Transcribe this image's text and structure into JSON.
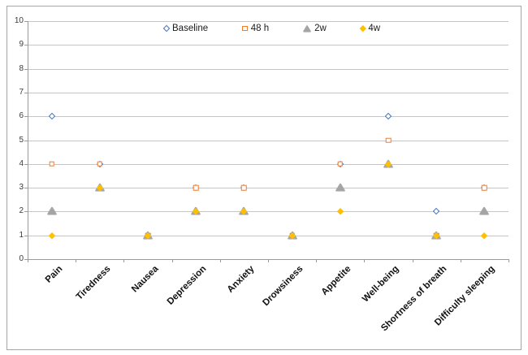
{
  "chart_data": {
    "type": "scatter",
    "title": "",
    "xlabel": "",
    "ylabel": "",
    "categories": [
      "Pain",
      "Tiredness",
      "Nausea",
      "Depression",
      "Anxiety",
      "Drowsiness",
      "Appetite",
      "Well-being",
      "Shortness of breath",
      "Difficulty sleeping"
    ],
    "series": [
      {
        "name": "Baseline",
        "marker": "diamond-outline",
        "color": "#4472C4",
        "values": [
          6,
          4,
          1,
          3,
          3,
          1,
          4,
          6,
          2,
          3
        ]
      },
      {
        "name": "48 h",
        "marker": "square-outline",
        "color": "#ED7D31",
        "values": [
          4,
          4,
          1,
          3,
          3,
          1,
          4,
          5,
          1,
          3
        ]
      },
      {
        "name": "2w",
        "marker": "triangle-filled",
        "color": "#A5A5A5",
        "values": [
          2,
          3,
          1,
          2,
          2,
          1,
          3,
          4,
          1,
          2
        ]
      },
      {
        "name": "4w",
        "marker": "diamond-filled",
        "color": "#FFC000",
        "values": [
          1,
          3,
          1,
          2,
          2,
          1,
          2,
          4,
          1,
          1
        ]
      }
    ],
    "ylim": [
      0,
      10
    ],
    "yticks": [
      0,
      1,
      2,
      3,
      4,
      5,
      6,
      7,
      8,
      9,
      10
    ],
    "grid": true,
    "legend_position": "top-center",
    "colors": {
      "gridline": "#c6c6c6",
      "axis": "#9a9a9a",
      "frame_border": "#a6a6a6",
      "text": "#1a1a1a"
    }
  }
}
